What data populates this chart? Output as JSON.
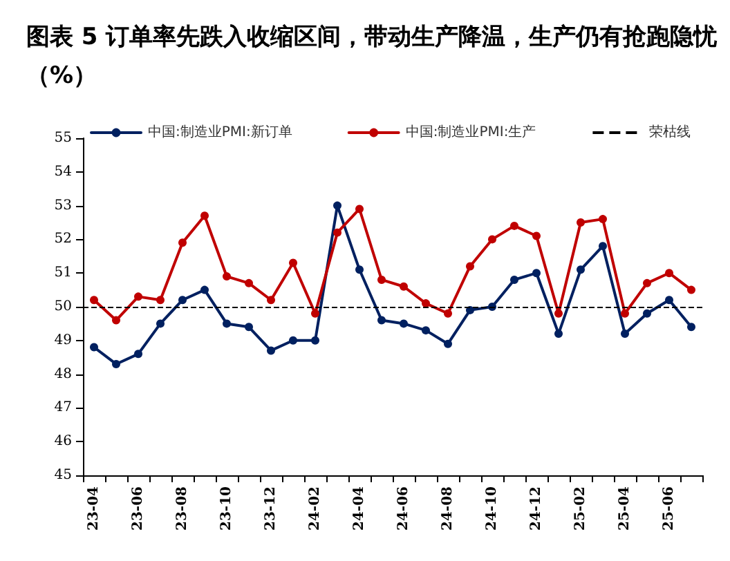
{
  "chart_data": {
    "type": "line",
    "title": "图表 5 订单率先跌入收缩区间，带动生产降温，生产仍有抢跑隐忧（%）",
    "categories": [
      "23-04",
      null,
      "23-06",
      null,
      "23-08",
      null,
      "23-10",
      null,
      "23-12",
      null,
      "24-02",
      null,
      "24-04",
      null,
      "24-06",
      null,
      "24-08",
      null,
      "24-10",
      null,
      "24-12",
      null,
      "25-02",
      null,
      "25-04",
      null,
      "25-06",
      null
    ],
    "series": [
      {
        "name": "中国:制造业PMI:新订单",
        "color": "#002060",
        "values": [
          48.8,
          48.3,
          48.6,
          49.5,
          50.2,
          50.5,
          49.5,
          49.4,
          48.7,
          49.0,
          49.0,
          53.0,
          51.1,
          49.6,
          49.5,
          49.3,
          48.9,
          49.9,
          50.0,
          50.8,
          51.0,
          49.2,
          51.1,
          51.8,
          49.2,
          49.8,
          50.2,
          49.4
        ]
      },
      {
        "name": "中国:制造业PMI:生产",
        "color": "#c00000",
        "values": [
          50.2,
          49.6,
          50.3,
          50.2,
          51.9,
          52.7,
          50.9,
          50.7,
          50.2,
          51.3,
          49.8,
          52.2,
          52.9,
          50.8,
          50.6,
          50.1,
          49.8,
          51.2,
          52.0,
          52.4,
          52.1,
          49.8,
          52.5,
          52.6,
          49.8,
          50.7,
          51.0,
          50.5
        ]
      }
    ],
    "ref_lines": [
      {
        "axis": "y",
        "value": 50,
        "label": "荣枯线",
        "color": "#000000",
        "line_style": "dashed"
      }
    ],
    "ylim": [
      45,
      55
    ],
    "yticks": [
      45,
      46,
      47,
      48,
      49,
      50,
      51,
      52,
      53,
      54,
      55
    ],
    "grid": false,
    "legend": "top",
    "marker": "circle",
    "line_style": "solid"
  }
}
